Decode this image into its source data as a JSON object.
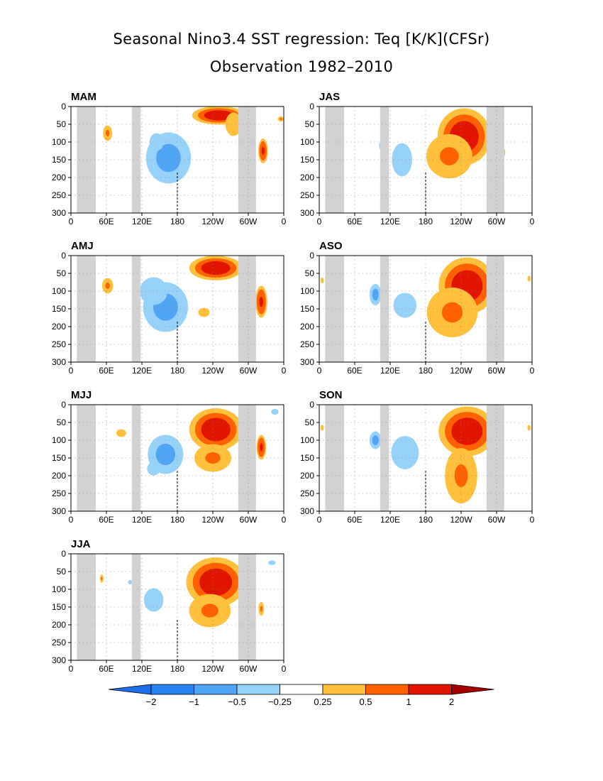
{
  "titles": {
    "line1": "Seasonal Nino3.4 SST regression: Teq [K/K](CFSr)",
    "line2": "Observation 1982–2010"
  },
  "colors": {
    "mask": "#d2d2d2",
    "levels": [
      "#1e6eeb",
      "#2882f0",
      "#50a5f5",
      "#96d2fa",
      "#ffffff",
      "#ffc03c",
      "#ff6000",
      "#e11400",
      "#a50000"
    ],
    "grid": "#888888",
    "dateline": "#000000"
  },
  "chart_data": {
    "type": "heatmap",
    "x_ticks": [
      "0",
      "60E",
      "120E",
      "180",
      "120W",
      "60W",
      "0"
    ],
    "y_ticks": [
      "0",
      "50",
      "100",
      "150",
      "200",
      "250",
      "300"
    ],
    "xlim": [
      0,
      360
    ],
    "ylim": [
      300,
      0
    ],
    "grid": true,
    "dateline_marker_lon": 180,
    "land_mask_lon_ranges": [
      [
        10,
        42
      ],
      [
        103,
        118
      ],
      [
        283,
        313
      ]
    ],
    "colorbar": {
      "labels": [
        "−2",
        "−1",
        "−0.5",
        "−0.25",
        "0.25",
        "0.5",
        "1",
        "2"
      ],
      "thresholds": [
        -2,
        -1,
        -0.5,
        -0.25,
        0.25,
        0.5,
        1,
        2
      ]
    },
    "panels": [
      {
        "label": "MAM",
        "features": [
          {
            "lon": 165,
            "depth": 145,
            "rx": 38,
            "ry": 72,
            "value": -0.9
          },
          {
            "lon": 145,
            "depth": 100,
            "rx": 22,
            "ry": 45,
            "value": -0.4
          },
          {
            "lon": 62,
            "depth": 75,
            "rx": 10,
            "ry": 28,
            "value": 0.6
          },
          {
            "lon": 250,
            "depth": 25,
            "rx": 45,
            "ry": 26,
            "value": 1.3
          },
          {
            "lon": 275,
            "depth": 50,
            "rx": 25,
            "ry": 60,
            "value": 0.35
          },
          {
            "lon": 325,
            "depth": 125,
            "rx": 8,
            "ry": 35,
            "value": 1.2
          },
          {
            "lon": 355,
            "depth": 35,
            "rx": 6,
            "ry": 10,
            "value": 0.6
          }
        ]
      },
      {
        "label": "JAS",
        "features": [
          {
            "lon": 245,
            "depth": 85,
            "rx": 45,
            "ry": 80,
            "value": 1.6
          },
          {
            "lon": 220,
            "depth": 140,
            "rx": 50,
            "ry": 80,
            "value": 0.5
          },
          {
            "lon": 140,
            "depth": 150,
            "rx": 22,
            "ry": 60,
            "value": -0.5
          },
          {
            "lon": 105,
            "depth": 110,
            "rx": 12,
            "ry": 40,
            "value": -0.3
          },
          {
            "lon": 312,
            "depth": 130,
            "rx": 5,
            "ry": 20,
            "value": 0.4
          }
        ]
      },
      {
        "label": "AMJ",
        "features": [
          {
            "lon": 160,
            "depth": 145,
            "rx": 38,
            "ry": 70,
            "value": -0.9
          },
          {
            "lon": 140,
            "depth": 100,
            "rx": 30,
            "ry": 50,
            "value": -0.5
          },
          {
            "lon": 62,
            "depth": 85,
            "rx": 12,
            "ry": 28,
            "value": 0.6
          },
          {
            "lon": 245,
            "depth": 35,
            "rx": 45,
            "ry": 35,
            "value": 1.4
          },
          {
            "lon": 225,
            "depth": 160,
            "rx": 30,
            "ry": 40,
            "value": 0.3
          },
          {
            "lon": 322,
            "depth": 130,
            "rx": 10,
            "ry": 45,
            "value": 1.1
          }
        ]
      },
      {
        "label": "ASO",
        "features": [
          {
            "lon": 250,
            "depth": 85,
            "rx": 48,
            "ry": 80,
            "value": 1.6
          },
          {
            "lon": 225,
            "depth": 160,
            "rx": 55,
            "ry": 90,
            "value": 0.5
          },
          {
            "lon": 145,
            "depth": 140,
            "rx": 25,
            "ry": 45,
            "value": -0.5
          },
          {
            "lon": 95,
            "depth": 110,
            "rx": 10,
            "ry": 30,
            "value": -0.9
          },
          {
            "lon": 5,
            "depth": 70,
            "rx": 5,
            "ry": 15,
            "value": 0.35
          },
          {
            "lon": 355,
            "depth": 65,
            "rx": 5,
            "ry": 15,
            "value": 0.35
          }
        ]
      },
      {
        "label": "MJJ",
        "features": [
          {
            "lon": 160,
            "depth": 140,
            "rx": 30,
            "ry": 55,
            "value": -0.9
          },
          {
            "lon": 140,
            "depth": 180,
            "rx": 35,
            "ry": 60,
            "value": -0.3
          },
          {
            "lon": 245,
            "depth": 70,
            "rx": 45,
            "ry": 60,
            "value": 1.4
          },
          {
            "lon": 240,
            "depth": 150,
            "rx": 40,
            "ry": 50,
            "value": 0.6
          },
          {
            "lon": 85,
            "depth": 80,
            "rx": 15,
            "ry": 20,
            "value": 0.35
          },
          {
            "lon": 322,
            "depth": 120,
            "rx": 8,
            "ry": 35,
            "value": 1.1
          },
          {
            "lon": 345,
            "depth": 20,
            "rx": 20,
            "ry": 25,
            "value": -0.3
          }
        ]
      },
      {
        "label": "SON",
        "features": [
          {
            "lon": 250,
            "depth": 75,
            "rx": 48,
            "ry": 70,
            "value": 1.6
          },
          {
            "lon": 240,
            "depth": 200,
            "rx": 35,
            "ry": 100,
            "value": 0.5
          },
          {
            "lon": 145,
            "depth": 135,
            "rx": 30,
            "ry": 60,
            "value": -0.5
          },
          {
            "lon": 95,
            "depth": 100,
            "rx": 10,
            "ry": 25,
            "value": -0.9
          },
          {
            "lon": 5,
            "depth": 65,
            "rx": 5,
            "ry": 15,
            "value": 0.35
          },
          {
            "lon": 355,
            "depth": 65,
            "rx": 5,
            "ry": 15,
            "value": 0.35
          }
        ]
      },
      {
        "label": "JJA",
        "features": [
          {
            "lon": 245,
            "depth": 80,
            "rx": 50,
            "ry": 70,
            "value": 1.6
          },
          {
            "lon": 235,
            "depth": 160,
            "rx": 45,
            "ry": 60,
            "value": 0.5
          },
          {
            "lon": 140,
            "depth": 130,
            "rx": 30,
            "ry": 60,
            "value": -0.4
          },
          {
            "lon": 100,
            "depth": 80,
            "rx": 10,
            "ry": 20,
            "value": -0.3
          },
          {
            "lon": 52,
            "depth": 70,
            "rx": 4,
            "ry": 15,
            "value": 0.6
          },
          {
            "lon": 322,
            "depth": 155,
            "rx": 6,
            "ry": 25,
            "value": 0.6
          },
          {
            "lon": 340,
            "depth": 25,
            "rx": 20,
            "ry": 20,
            "value": -0.3
          }
        ]
      }
    ]
  }
}
